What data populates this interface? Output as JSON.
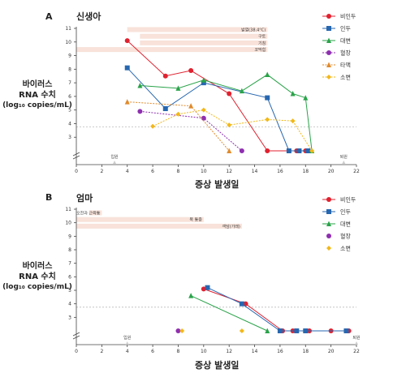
{
  "chart_data": [
    {
      "type": "line",
      "panel": "A",
      "title": "신생아",
      "xlabel": "증상 발생일",
      "ylabel": [
        "바이러스",
        "RNA 수치",
        "(log₁₀ copies/mL)"
      ],
      "xlim": [
        0,
        22
      ],
      "xticks": [
        0,
        2,
        4,
        6,
        8,
        10,
        12,
        14,
        16,
        18,
        20,
        22
      ],
      "ylim": [
        2,
        11
      ],
      "yticks": [
        3,
        4,
        5,
        6,
        7,
        8,
        9,
        10,
        11
      ],
      "threshold": 3.75,
      "symptom_bars": [
        {
          "label": "발열(38.4°C)",
          "start": 4,
          "end": 15
        },
        {
          "label": "구토",
          "start": 5,
          "end": 15
        },
        {
          "label": "기침",
          "start": 5,
          "end": 15
        },
        {
          "label": "코막힘",
          "start": 0,
          "end": 15
        }
      ],
      "events": [
        {
          "label": "입원",
          "x": 3
        },
        {
          "label": "퇴원",
          "x": 21
        }
      ],
      "series": [
        {
          "name": "비인두",
          "color": "#e0212f",
          "marker": "circle",
          "style": "solid",
          "points": [
            [
              4,
              10.1
            ],
            [
              7,
              7.5
            ],
            [
              9,
              7.9
            ],
            [
              12,
              6.2
            ],
            [
              15,
              2.0
            ],
            [
              17.3,
              2.0
            ],
            [
              18,
              2.0
            ]
          ]
        },
        {
          "name": "인두",
          "color": "#2767b0",
          "marker": "square",
          "style": "solid",
          "points": [
            [
              4,
              8.1
            ],
            [
              7,
              5.1
            ],
            [
              10,
              7.0
            ],
            [
              15,
              5.9
            ],
            [
              16.7,
              2.0
            ],
            [
              17.5,
              2.0
            ],
            [
              18.2,
              2.0
            ]
          ]
        },
        {
          "name": "대변",
          "color": "#2aa34a",
          "marker": "triangle",
          "style": "solid",
          "points": [
            [
              5,
              6.8
            ],
            [
              8,
              6.6
            ],
            [
              10,
              7.2
            ],
            [
              13,
              6.4
            ],
            [
              15,
              7.6
            ],
            [
              17,
              6.2
            ],
            [
              18,
              5.9
            ],
            [
              18.5,
              2.0
            ]
          ]
        },
        {
          "name": "혈장",
          "color": "#8e2fb0",
          "marker": "circle",
          "style": "dashed",
          "points": [
            [
              5,
              4.9
            ],
            [
              10,
              4.4
            ],
            [
              13,
              2.0
            ]
          ]
        },
        {
          "name": "타액",
          "color": "#e08a2c",
          "marker": "triangle",
          "style": "dashed",
          "points": [
            [
              4,
              5.6
            ],
            [
              9,
              5.3
            ],
            [
              12,
              2.0
            ]
          ]
        },
        {
          "name": "소변",
          "color": "#f2b81a",
          "marker": "diamond",
          "style": "dashed",
          "points": [
            [
              6,
              3.8
            ],
            [
              8,
              4.7
            ],
            [
              10,
              5.0
            ],
            [
              12,
              3.9
            ],
            [
              15,
              4.3
            ],
            [
              17,
              4.2
            ],
            [
              18.5,
              2.0
            ]
          ]
        }
      ]
    },
    {
      "type": "line",
      "panel": "B",
      "title": "엄마",
      "xlabel": "증상 발생일",
      "ylabel": [
        "바이러스",
        "RNA 수치",
        "(log₁₀ copies/mL)"
      ],
      "xlim": [
        0,
        22
      ],
      "xticks": [
        0,
        2,
        4,
        6,
        8,
        10,
        12,
        14,
        16,
        18,
        20,
        22
      ],
      "ylim": [
        2,
        11
      ],
      "yticks": [
        3,
        4,
        5,
        6,
        7,
        8,
        9,
        10,
        11
      ],
      "threshold": 3.75,
      "symptom_bars": [
        {
          "label": "오한과 근육통",
          "start": 1,
          "end": 2
        },
        {
          "label": "목 통증",
          "start": 0,
          "end": 10
        },
        {
          "label": "객담(가래)",
          "start": 0,
          "end": 13
        }
      ],
      "events": [
        {
          "label": "입원",
          "x": 4
        },
        {
          "label": "퇴원",
          "x": 22
        }
      ],
      "series": [
        {
          "name": "비인두",
          "color": "#e0212f",
          "marker": "circle",
          "style": "solid",
          "points": [
            [
              10,
              5.1
            ],
            [
              13.3,
              4.0
            ],
            [
              16.2,
              2.0
            ],
            [
              17,
              2.0
            ],
            [
              18.3,
              2.0
            ],
            [
              20,
              2.0
            ],
            [
              21.4,
              2.0
            ]
          ]
        },
        {
          "name": "인두",
          "color": "#2767b0",
          "marker": "square",
          "style": "solid",
          "points": [
            [
              10.3,
              5.2
            ],
            [
              13,
              4.0
            ],
            [
              16,
              2.0
            ],
            [
              17.3,
              2.0
            ],
            [
              18,
              2.0
            ],
            [
              21.2,
              2.0
            ]
          ]
        },
        {
          "name": "대변",
          "color": "#2aa34a",
          "marker": "triangle",
          "style": "solid",
          "points": [
            [
              9,
              4.6
            ],
            [
              15,
              2.0
            ]
          ]
        },
        {
          "name": "혈장",
          "color": "#8e2fb0",
          "marker": "circle",
          "style": "none",
          "points": [
            [
              8,
              2.0
            ]
          ]
        },
        {
          "name": "소변",
          "color": "#f2b81a",
          "marker": "diamond",
          "style": "none",
          "points": [
            [
              8.3,
              2.0
            ],
            [
              13,
              2.0
            ]
          ]
        }
      ]
    }
  ]
}
